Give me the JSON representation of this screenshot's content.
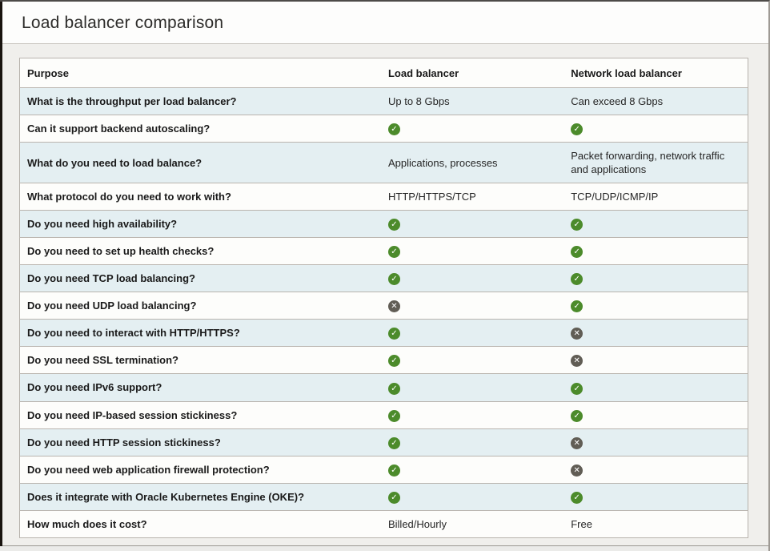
{
  "window": {
    "title": "Load balancer comparison"
  },
  "colors": {
    "check_green": "#4c8b2b",
    "cross_gray": "#615d55",
    "row_alt_blue": "#e4eff2",
    "row_base": "#fdfdfb",
    "table_border": "#b6b1ab"
  },
  "glyphs": {
    "check": "✓",
    "cross": "✕"
  },
  "table": {
    "headers": [
      "Purpose",
      "Load balancer",
      "Network load balancer"
    ],
    "rows": [
      {
        "purpose": "What is the throughput per load balancer?",
        "load_balancer": {
          "type": "text",
          "value": "Up to 8 Gbps"
        },
        "network_load_balancer": {
          "type": "text",
          "value": "Can exceed 8 Gbps"
        }
      },
      {
        "purpose": "Can it support backend autoscaling?",
        "load_balancer": {
          "type": "icon",
          "value": "check"
        },
        "network_load_balancer": {
          "type": "icon",
          "value": "check"
        }
      },
      {
        "purpose": "What do you need to load balance?",
        "load_balancer": {
          "type": "text",
          "value": "Applications, processes"
        },
        "network_load_balancer": {
          "type": "text",
          "value": "Packet forwarding, network traffic and applications"
        }
      },
      {
        "purpose": "What protocol do you need to work with?",
        "load_balancer": {
          "type": "text",
          "value": "HTTP/HTTPS/TCP"
        },
        "network_load_balancer": {
          "type": "text",
          "value": "TCP/UDP/ICMP/IP"
        }
      },
      {
        "purpose": "Do you need high availability?",
        "load_balancer": {
          "type": "icon",
          "value": "check"
        },
        "network_load_balancer": {
          "type": "icon",
          "value": "check"
        }
      },
      {
        "purpose": "Do you need to set up health checks?",
        "load_balancer": {
          "type": "icon",
          "value": "check"
        },
        "network_load_balancer": {
          "type": "icon",
          "value": "check"
        }
      },
      {
        "purpose": "Do you need TCP load balancing?",
        "load_balancer": {
          "type": "icon",
          "value": "check"
        },
        "network_load_balancer": {
          "type": "icon",
          "value": "check"
        }
      },
      {
        "purpose": "Do you need UDP load balancing?",
        "load_balancer": {
          "type": "icon",
          "value": "cross"
        },
        "network_load_balancer": {
          "type": "icon",
          "value": "check"
        }
      },
      {
        "purpose": "Do you need to interact with HTTP/HTTPS?",
        "load_balancer": {
          "type": "icon",
          "value": "check"
        },
        "network_load_balancer": {
          "type": "icon",
          "value": "cross"
        }
      },
      {
        "purpose": "Do you need SSL termination?",
        "load_balancer": {
          "type": "icon",
          "value": "check"
        },
        "network_load_balancer": {
          "type": "icon",
          "value": "cross"
        }
      },
      {
        "purpose": "Do you need IPv6 support?",
        "load_balancer": {
          "type": "icon",
          "value": "check"
        },
        "network_load_balancer": {
          "type": "icon",
          "value": "check"
        }
      },
      {
        "purpose": "Do you need IP-based session stickiness?",
        "load_balancer": {
          "type": "icon",
          "value": "check"
        },
        "network_load_balancer": {
          "type": "icon",
          "value": "check"
        }
      },
      {
        "purpose": "Do you need HTTP session stickiness?",
        "load_balancer": {
          "type": "icon",
          "value": "check"
        },
        "network_load_balancer": {
          "type": "icon",
          "value": "cross"
        }
      },
      {
        "purpose": "Do you need web application firewall protection?",
        "load_balancer": {
          "type": "icon",
          "value": "check"
        },
        "network_load_balancer": {
          "type": "icon",
          "value": "cross"
        }
      },
      {
        "purpose": "Does it integrate with Oracle Kubernetes Engine (OKE)?",
        "load_balancer": {
          "type": "icon",
          "value": "check"
        },
        "network_load_balancer": {
          "type": "icon",
          "value": "check"
        }
      },
      {
        "purpose": "How much does it cost?",
        "load_balancer": {
          "type": "text",
          "value": "Billed/Hourly"
        },
        "network_load_balancer": {
          "type": "text",
          "value": "Free"
        }
      }
    ]
  }
}
